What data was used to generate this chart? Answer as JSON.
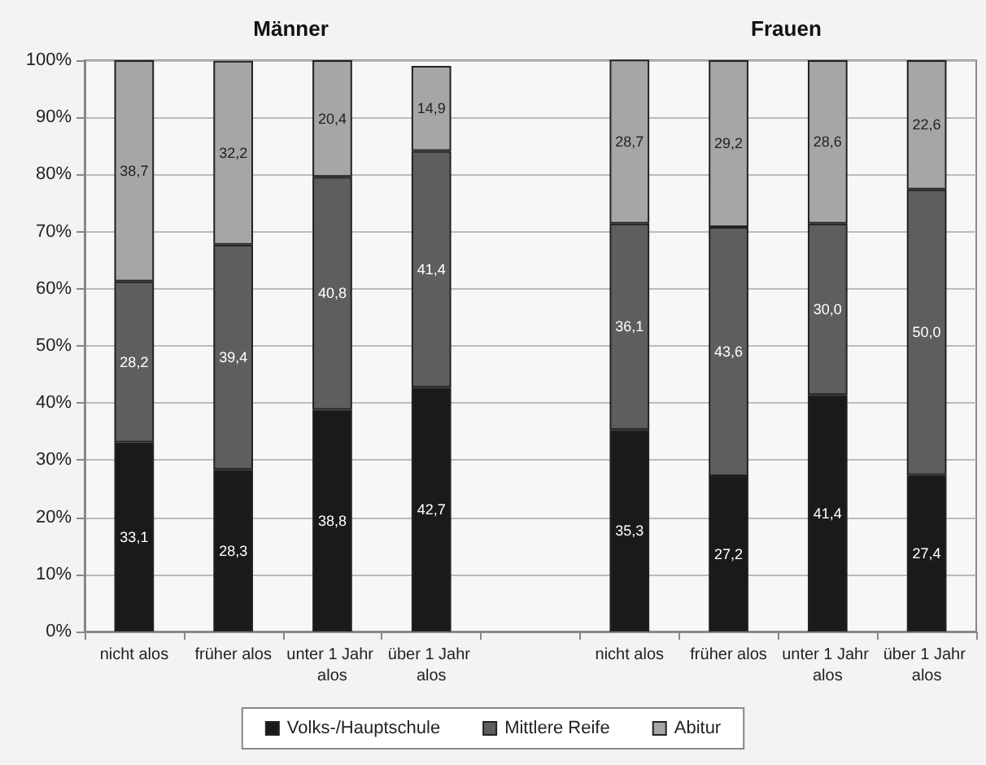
{
  "chart_data": {
    "type": "bar",
    "stacked": true,
    "categories": [
      "nicht alos",
      "früher alos",
      "unter 1 Jahr alos",
      "über 1 Jahr alos",
      null,
      "nicht alos",
      "früher alos",
      "unter 1 Jahr alos",
      "über 1 Jahr alos"
    ],
    "series": [
      {
        "name": "Volks-/Hauptschule",
        "color": "#1a1a1a",
        "values": [
          33.1,
          28.3,
          38.8,
          42.7,
          null,
          35.3,
          27.2,
          41.4,
          27.4
        ],
        "value_labels": [
          "33,1",
          "28,3",
          "38,8",
          "42,7",
          null,
          "35,3",
          "27,2",
          "41,4",
          "27,4"
        ]
      },
      {
        "name": "Mittlere Reife",
        "color": "#5e5e5e",
        "values": [
          28.2,
          39.4,
          40.8,
          41.4,
          null,
          36.1,
          43.6,
          30.0,
          50.0
        ],
        "value_labels": [
          "28,2",
          "39,4",
          "40,8",
          "41,4",
          null,
          "36,1",
          "43,6",
          "30,0",
          "50,0"
        ]
      },
      {
        "name": "Abitur",
        "color": "#a6a6a6",
        "values": [
          38.7,
          32.2,
          20.4,
          14.9,
          null,
          28.7,
          29.2,
          28.6,
          22.6
        ],
        "value_labels": [
          "38,7",
          "32,2",
          "20,4",
          "14,9",
          null,
          "28,7",
          "29,2",
          "28,6",
          "22,6"
        ]
      }
    ],
    "annotations": [
      "Männer",
      "Frauen"
    ],
    "ylim": [
      0,
      100
    ],
    "yticks": [
      {
        "value": 0,
        "label": "0%"
      },
      {
        "value": 10,
        "label": "10%"
      },
      {
        "value": 20,
        "label": "20%"
      },
      {
        "value": 30,
        "label": "30%"
      },
      {
        "value": 40,
        "label": "40%"
      },
      {
        "value": 50,
        "label": "50%"
      },
      {
        "value": 60,
        "label": "60%"
      },
      {
        "value": 70,
        "label": "70%"
      },
      {
        "value": 80,
        "label": "80%"
      },
      {
        "value": 90,
        "label": "90%"
      },
      {
        "value": 100,
        "label": "100%"
      }
    ],
    "grid": "y",
    "legend": "bottom"
  }
}
